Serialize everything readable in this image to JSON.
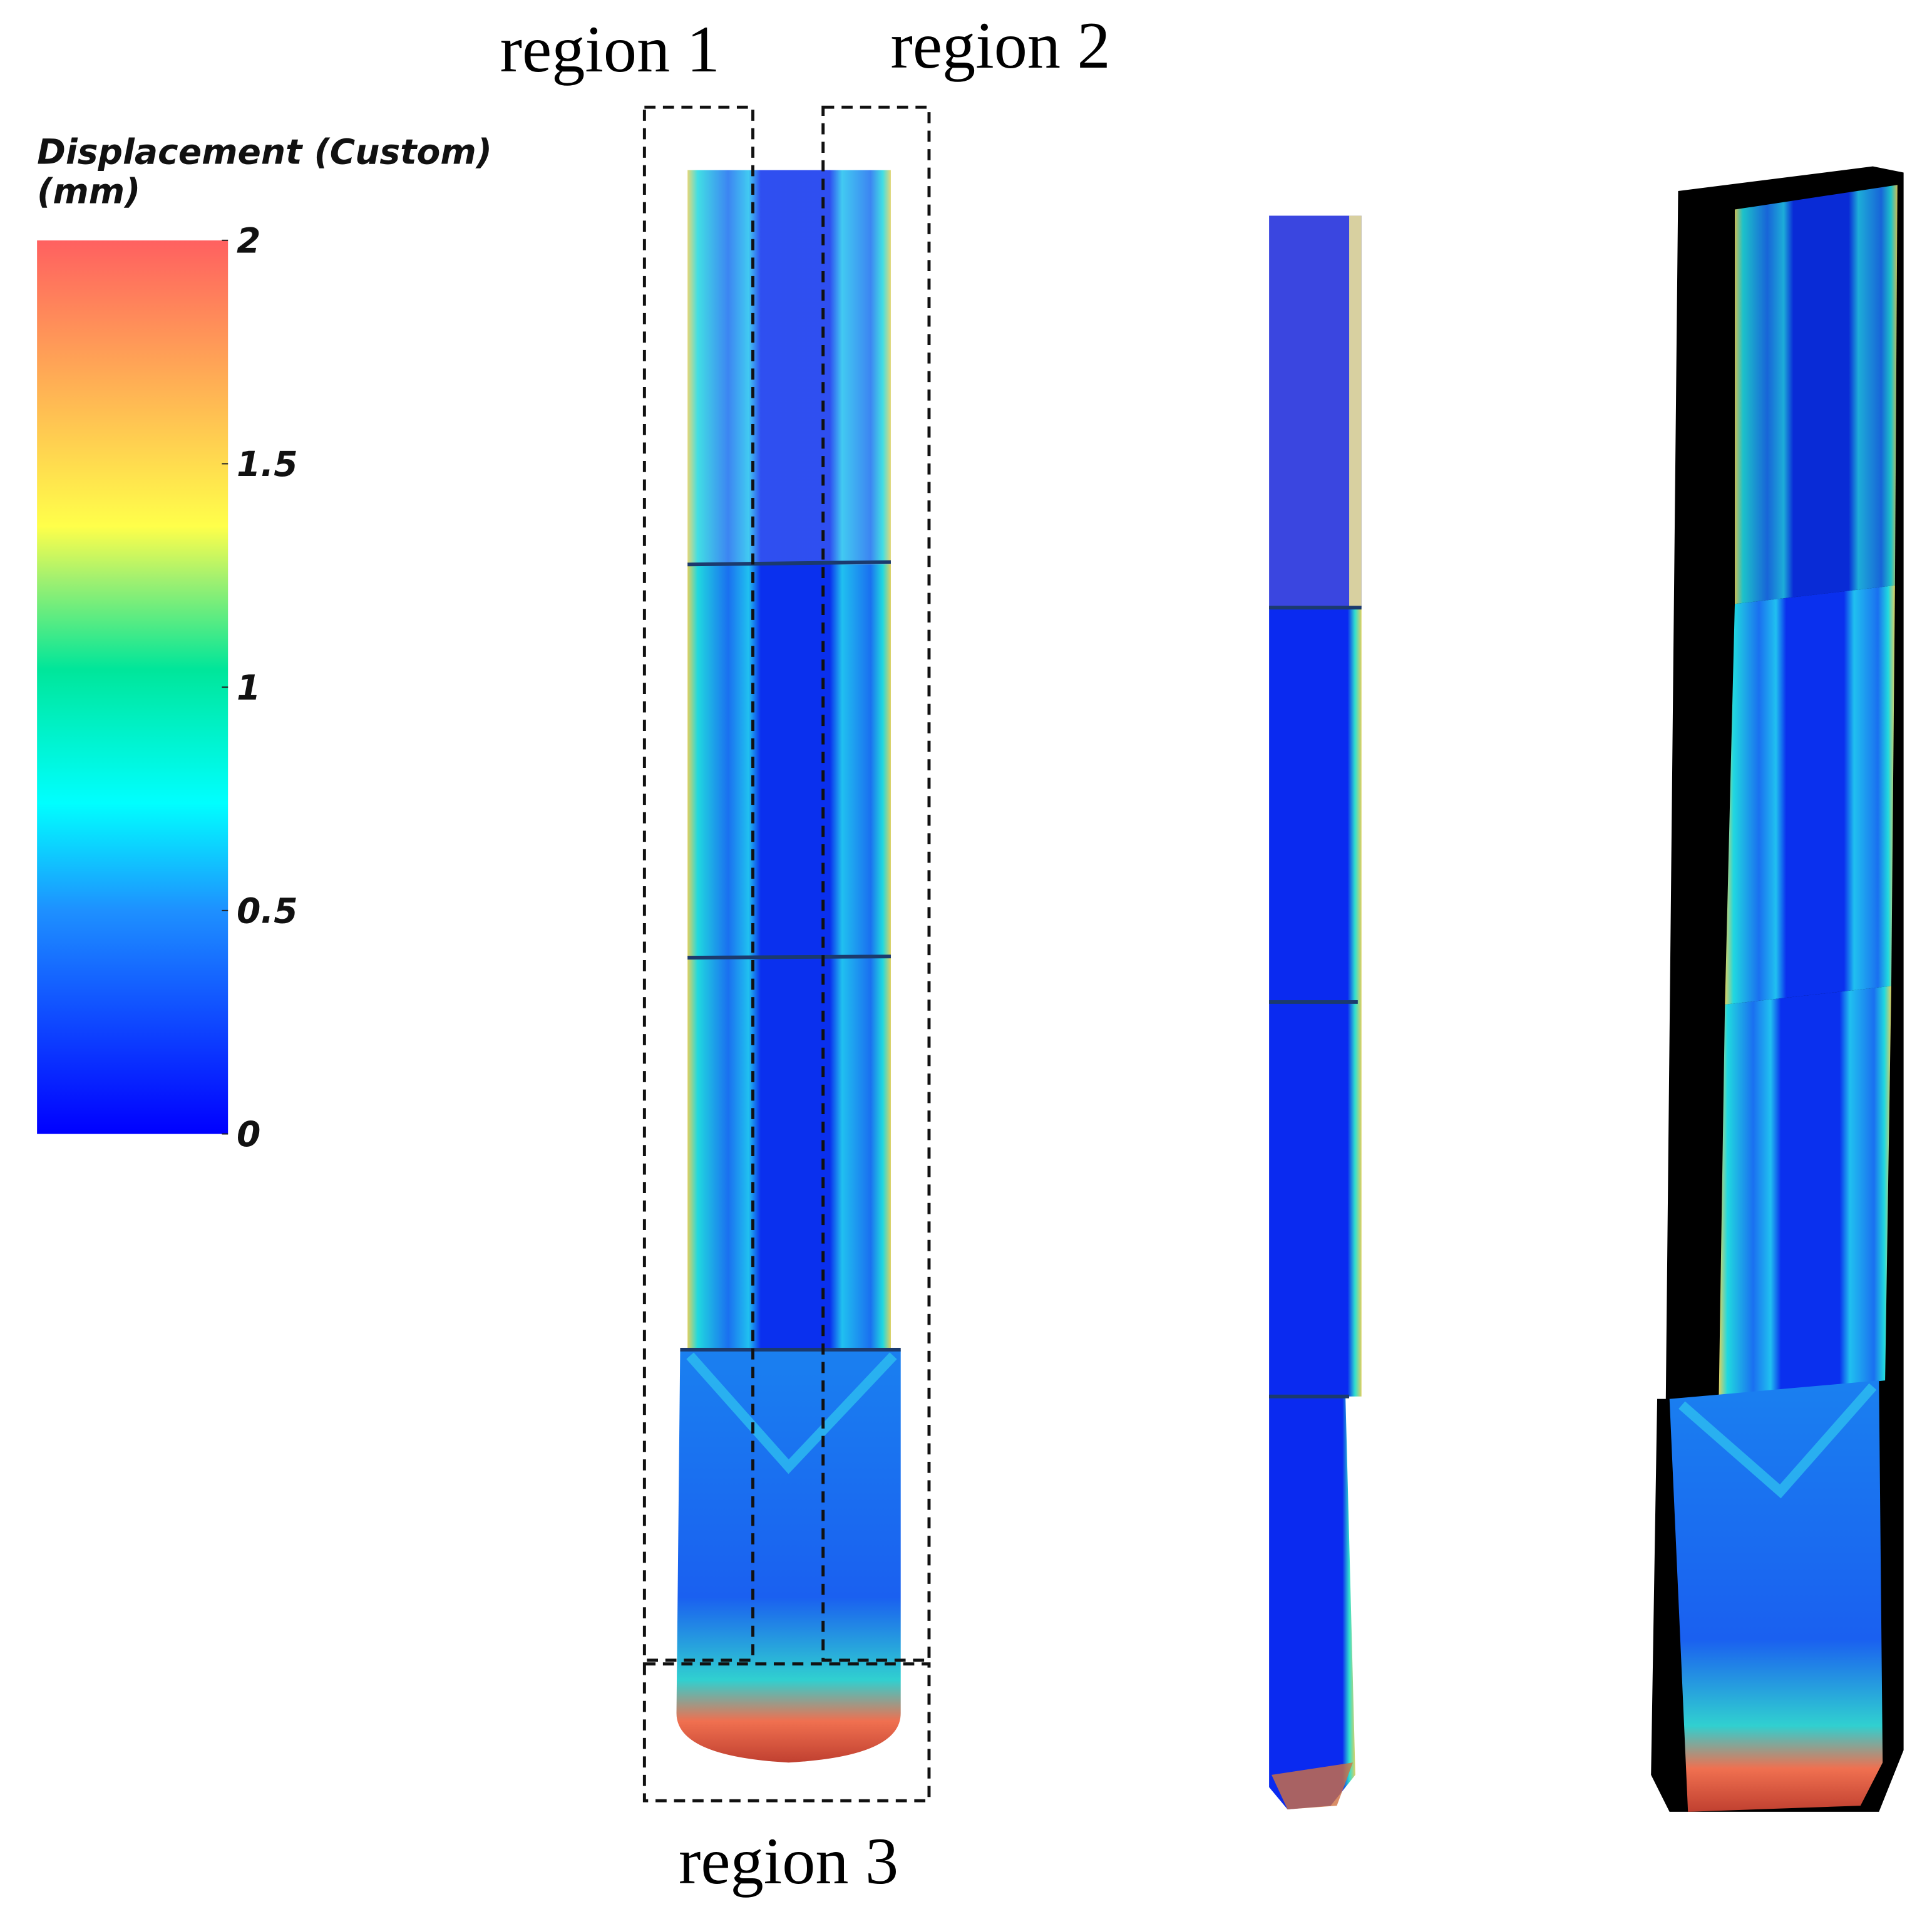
{
  "legend": {
    "title": "Displacement (Custom)",
    "unit": "(mm)",
    "range": [
      0,
      2
    ],
    "ticks": [
      0,
      0.5,
      1,
      1.5,
      2
    ]
  },
  "regions": [
    "region 1",
    "region 2",
    "region 3"
  ]
}
